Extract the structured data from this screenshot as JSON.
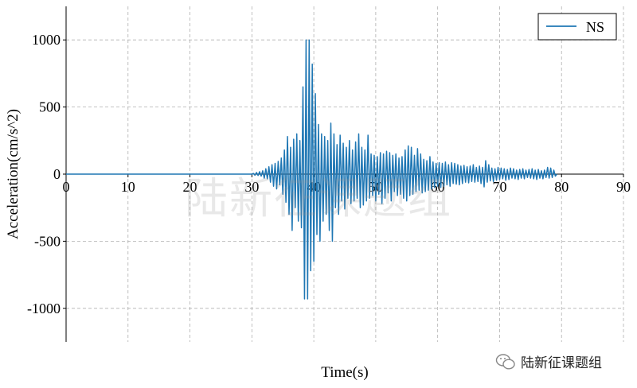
{
  "chart_data": {
    "type": "line",
    "title": "",
    "xlabel": "Time(s)",
    "ylabel": "Acceleration(cm/s^2)",
    "xlim": [
      0,
      90
    ],
    "ylim": [
      -1250,
      1250
    ],
    "xticks": [
      0,
      10,
      20,
      30,
      40,
      50,
      60,
      70,
      80,
      90
    ],
    "yticks": [
      -1000,
      -500,
      0,
      500,
      1000
    ],
    "grid": true,
    "legend_position": "top-right",
    "series": [
      {
        "name": "NS",
        "color": "#1f77b4",
        "points": [
          [
            0,
            0
          ],
          [
            30,
            0
          ],
          [
            30.25,
            5
          ],
          [
            30.5,
            -8
          ],
          [
            30.75,
            12
          ],
          [
            31,
            -10
          ],
          [
            31.25,
            18
          ],
          [
            31.5,
            -15
          ],
          [
            31.75,
            25
          ],
          [
            32,
            -30
          ],
          [
            32.25,
            40
          ],
          [
            32.5,
            -35
          ],
          [
            32.75,
            55
          ],
          [
            33,
            -60
          ],
          [
            33.25,
            70
          ],
          [
            33.5,
            -90
          ],
          [
            33.75,
            80
          ],
          [
            34,
            -110
          ],
          [
            34.25,
            95
          ],
          [
            34.5,
            -80
          ],
          [
            34.75,
            120
          ],
          [
            35,
            -150
          ],
          [
            35.25,
            180
          ],
          [
            35.5,
            -210
          ],
          [
            35.75,
            280
          ],
          [
            36,
            -300
          ],
          [
            36.25,
            200
          ],
          [
            36.5,
            -420
          ],
          [
            36.75,
            260
          ],
          [
            37,
            -250
          ],
          [
            37.25,
            300
          ],
          [
            37.5,
            -350
          ],
          [
            37.75,
            250
          ],
          [
            38,
            -400
          ],
          [
            38.25,
            650
          ],
          [
            38.5,
            -930
          ],
          [
            38.75,
            1000
          ],
          [
            39,
            -930
          ],
          [
            39.25,
            1000
          ],
          [
            39.5,
            -720
          ],
          [
            39.75,
            820
          ],
          [
            40,
            -650
          ],
          [
            40.25,
            600
          ],
          [
            40.5,
            -450
          ],
          [
            40.75,
            370
          ],
          [
            41,
            -500
          ],
          [
            41.25,
            300
          ],
          [
            41.5,
            -350
          ],
          [
            41.75,
            280
          ],
          [
            42,
            -300
          ],
          [
            42.25,
            250
          ],
          [
            42.5,
            -420
          ],
          [
            42.75,
            380
          ],
          [
            43,
            -500
          ],
          [
            43.25,
            300
          ],
          [
            43.5,
            -250
          ],
          [
            43.75,
            220
          ],
          [
            44,
            -300
          ],
          [
            44.25,
            290
          ],
          [
            44.5,
            -200
          ],
          [
            44.75,
            230
          ],
          [
            45,
            -260
          ],
          [
            45.25,
            200
          ],
          [
            45.5,
            -180
          ],
          [
            45.75,
            250
          ],
          [
            46,
            -220
          ],
          [
            46.25,
            180
          ],
          [
            46.5,
            -200
          ],
          [
            46.75,
            240
          ],
          [
            47,
            -180
          ],
          [
            47.25,
            300
          ],
          [
            47.5,
            -250
          ],
          [
            47.75,
            200
          ],
          [
            48,
            -230
          ],
          [
            48.25,
            180
          ],
          [
            48.5,
            -200
          ],
          [
            48.75,
            290
          ],
          [
            49,
            -180
          ],
          [
            49.25,
            150
          ],
          [
            49.5,
            -160
          ],
          [
            49.75,
            140
          ],
          [
            50,
            -200
          ],
          [
            50.25,
            130
          ],
          [
            50.5,
            -150
          ],
          [
            50.75,
            160
          ],
          [
            51,
            -220
          ],
          [
            51.25,
            150
          ],
          [
            51.5,
            -180
          ],
          [
            51.75,
            170
          ],
          [
            52,
            -140
          ],
          [
            52.25,
            160
          ],
          [
            52.5,
            -200
          ],
          [
            52.75,
            140
          ],
          [
            53,
            -130
          ],
          [
            53.25,
            150
          ],
          [
            53.5,
            -160
          ],
          [
            53.75,
            120
          ],
          [
            54,
            -150
          ],
          [
            54.25,
            130
          ],
          [
            54.5,
            -180
          ],
          [
            54.75,
            180
          ],
          [
            55,
            -200
          ],
          [
            55.25,
            210
          ],
          [
            55.5,
            -160
          ],
          [
            55.75,
            200
          ],
          [
            56,
            -150
          ],
          [
            56.25,
            140
          ],
          [
            56.5,
            -130
          ],
          [
            56.75,
            190
          ],
          [
            57,
            -120
          ],
          [
            57.25,
            150
          ],
          [
            57.5,
            -140
          ],
          [
            57.75,
            110
          ],
          [
            58,
            -130
          ],
          [
            58.25,
            100
          ],
          [
            58.5,
            -120
          ],
          [
            58.75,
            130
          ],
          [
            59,
            -110
          ],
          [
            59.25,
            90
          ],
          [
            59.5,
            -100
          ],
          [
            59.75,
            80
          ],
          [
            60,
            -90
          ],
          [
            60.25,
            85
          ],
          [
            60.5,
            -100
          ],
          [
            60.75,
            80
          ],
          [
            61,
            -90
          ],
          [
            61.25,
            90
          ],
          [
            61.5,
            -80
          ],
          [
            61.75,
            70
          ],
          [
            62,
            -90
          ],
          [
            62.25,
            85
          ],
          [
            62.5,
            -70
          ],
          [
            62.75,
            80
          ],
          [
            63,
            -75
          ],
          [
            63.25,
            70
          ],
          [
            63.5,
            -80
          ],
          [
            63.75,
            60
          ],
          [
            64,
            -70
          ],
          [
            64.25,
            65
          ],
          [
            64.5,
            -60
          ],
          [
            64.75,
            55
          ],
          [
            65,
            -65
          ],
          [
            65.25,
            60
          ],
          [
            65.5,
            -55
          ],
          [
            65.75,
            70
          ],
          [
            66,
            -60
          ],
          [
            66.25,
            50
          ],
          [
            66.5,
            -55
          ],
          [
            66.75,
            60
          ],
          [
            67,
            -70
          ],
          [
            67.25,
            50
          ],
          [
            67.5,
            -95
          ],
          [
            67.75,
            100
          ],
          [
            68,
            -60
          ],
          [
            68.25,
            70
          ],
          [
            68.5,
            -50
          ],
          [
            68.75,
            45
          ],
          [
            69,
            -55
          ],
          [
            69.25,
            40
          ],
          [
            69.5,
            -45
          ],
          [
            69.75,
            50
          ],
          [
            70,
            -40
          ],
          [
            70.25,
            45
          ],
          [
            70.5,
            -35
          ],
          [
            70.75,
            40
          ],
          [
            71,
            -45
          ],
          [
            71.25,
            35
          ],
          [
            71.5,
            -40
          ],
          [
            71.75,
            45
          ],
          [
            72,
            -30
          ],
          [
            72.25,
            40
          ],
          [
            72.5,
            -35
          ],
          [
            72.75,
            30
          ],
          [
            73,
            -40
          ],
          [
            73.25,
            35
          ],
          [
            73.5,
            -30
          ],
          [
            73.75,
            40
          ],
          [
            74,
            -35
          ],
          [
            74.25,
            30
          ],
          [
            74.5,
            -25
          ],
          [
            74.75,
            35
          ],
          [
            75,
            -30
          ],
          [
            75.25,
            40
          ],
          [
            75.5,
            -35
          ],
          [
            75.75,
            30
          ],
          [
            76,
            -40
          ],
          [
            76.25,
            35
          ],
          [
            76.5,
            -30
          ],
          [
            76.75,
            25
          ],
          [
            77,
            -35
          ],
          [
            77.25,
            30
          ],
          [
            77.5,
            -25
          ],
          [
            77.75,
            50
          ],
          [
            78,
            -30
          ],
          [
            78.25,
            45
          ],
          [
            78.5,
            -25
          ],
          [
            78.75,
            30
          ],
          [
            79,
            -15
          ],
          [
            79.25,
            0
          ]
        ]
      }
    ]
  },
  "watermark": {
    "text": "陆新征课题组"
  },
  "credit": {
    "icon": "wechat-icon",
    "text": "陆新征课题组"
  }
}
